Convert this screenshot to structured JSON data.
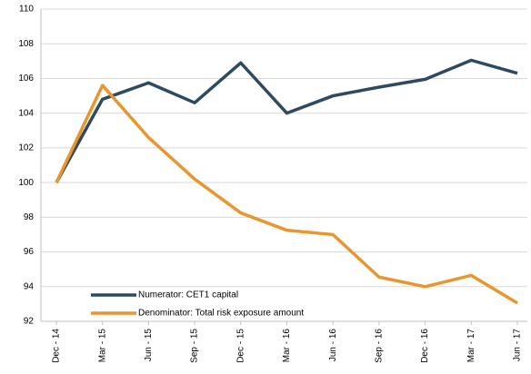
{
  "chart_data": {
    "type": "line",
    "categories": [
      "Dec - 14",
      "Mar - 15",
      "Jun - 15",
      "Sep - 15",
      "Dec - 15",
      "Mar - 16",
      "Jun - 16",
      "Sep - 16",
      "Dec - 16",
      "Mar - 17",
      "Jun - 17"
    ],
    "series": [
      {
        "name": "Numerator: CET1 capital",
        "color": "#2e4a62",
        "values": [
          100,
          104.8,
          105.75,
          104.6,
          106.9,
          104.0,
          105.0,
          105.5,
          105.95,
          107.05,
          106.3
        ]
      },
      {
        "name": "Denominator: Total risk exposure amount",
        "color": "#e8962e",
        "values": [
          100,
          105.6,
          102.6,
          100.2,
          98.25,
          97.25,
          97.0,
          94.55,
          94.0,
          94.65,
          93.05
        ]
      }
    ],
    "ylim": [
      92,
      110
    ],
    "yticks": [
      92,
      94,
      96,
      98,
      100,
      102,
      104,
      106,
      108,
      110
    ],
    "grid": true,
    "legend": "lower left"
  }
}
